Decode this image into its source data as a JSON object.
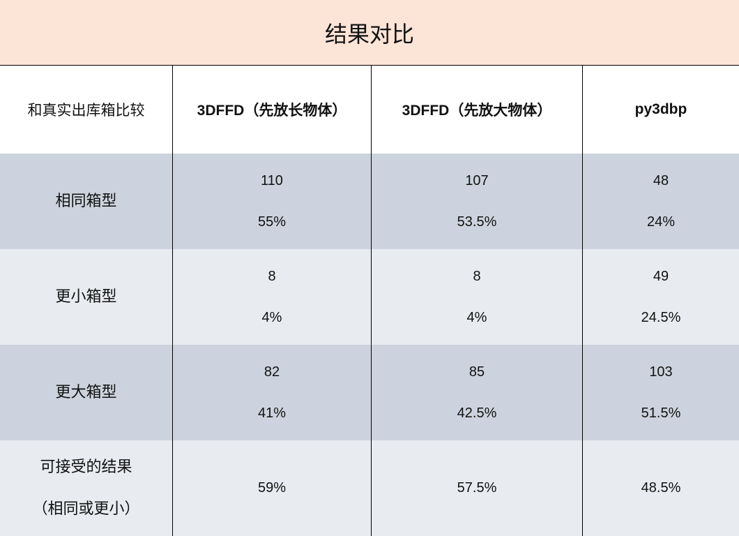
{
  "title": "结果对比",
  "header": [
    "和真实出库箱比较",
    "3DFFD（先放长物体）",
    "3DFFD（先放大物体）",
    "py3dbp"
  ],
  "rows": [
    {
      "label": [
        "相同箱型"
      ],
      "cells": [
        [
          "110",
          "55%"
        ],
        [
          "107",
          "53.5%"
        ],
        [
          "48",
          "24%"
        ]
      ]
    },
    {
      "label": [
        "更小箱型"
      ],
      "cells": [
        [
          "8",
          "4%"
        ],
        [
          "8",
          "4%"
        ],
        [
          "49",
          "24.5%"
        ]
      ]
    },
    {
      "label": [
        "更大箱型"
      ],
      "cells": [
        [
          "82",
          "41%"
        ],
        [
          "85",
          "42.5%"
        ],
        [
          "103",
          "51.5%"
        ]
      ]
    },
    {
      "label": [
        "可接受的结果",
        "（相同或更小）"
      ],
      "cells": [
        [
          "59%"
        ],
        [
          "57.5%"
        ],
        [
          "48.5%"
        ]
      ]
    }
  ],
  "colors": {
    "title_bg": "#fce4d6",
    "row_dark": "#cdd3de",
    "row_light": "#e8ebf0"
  }
}
